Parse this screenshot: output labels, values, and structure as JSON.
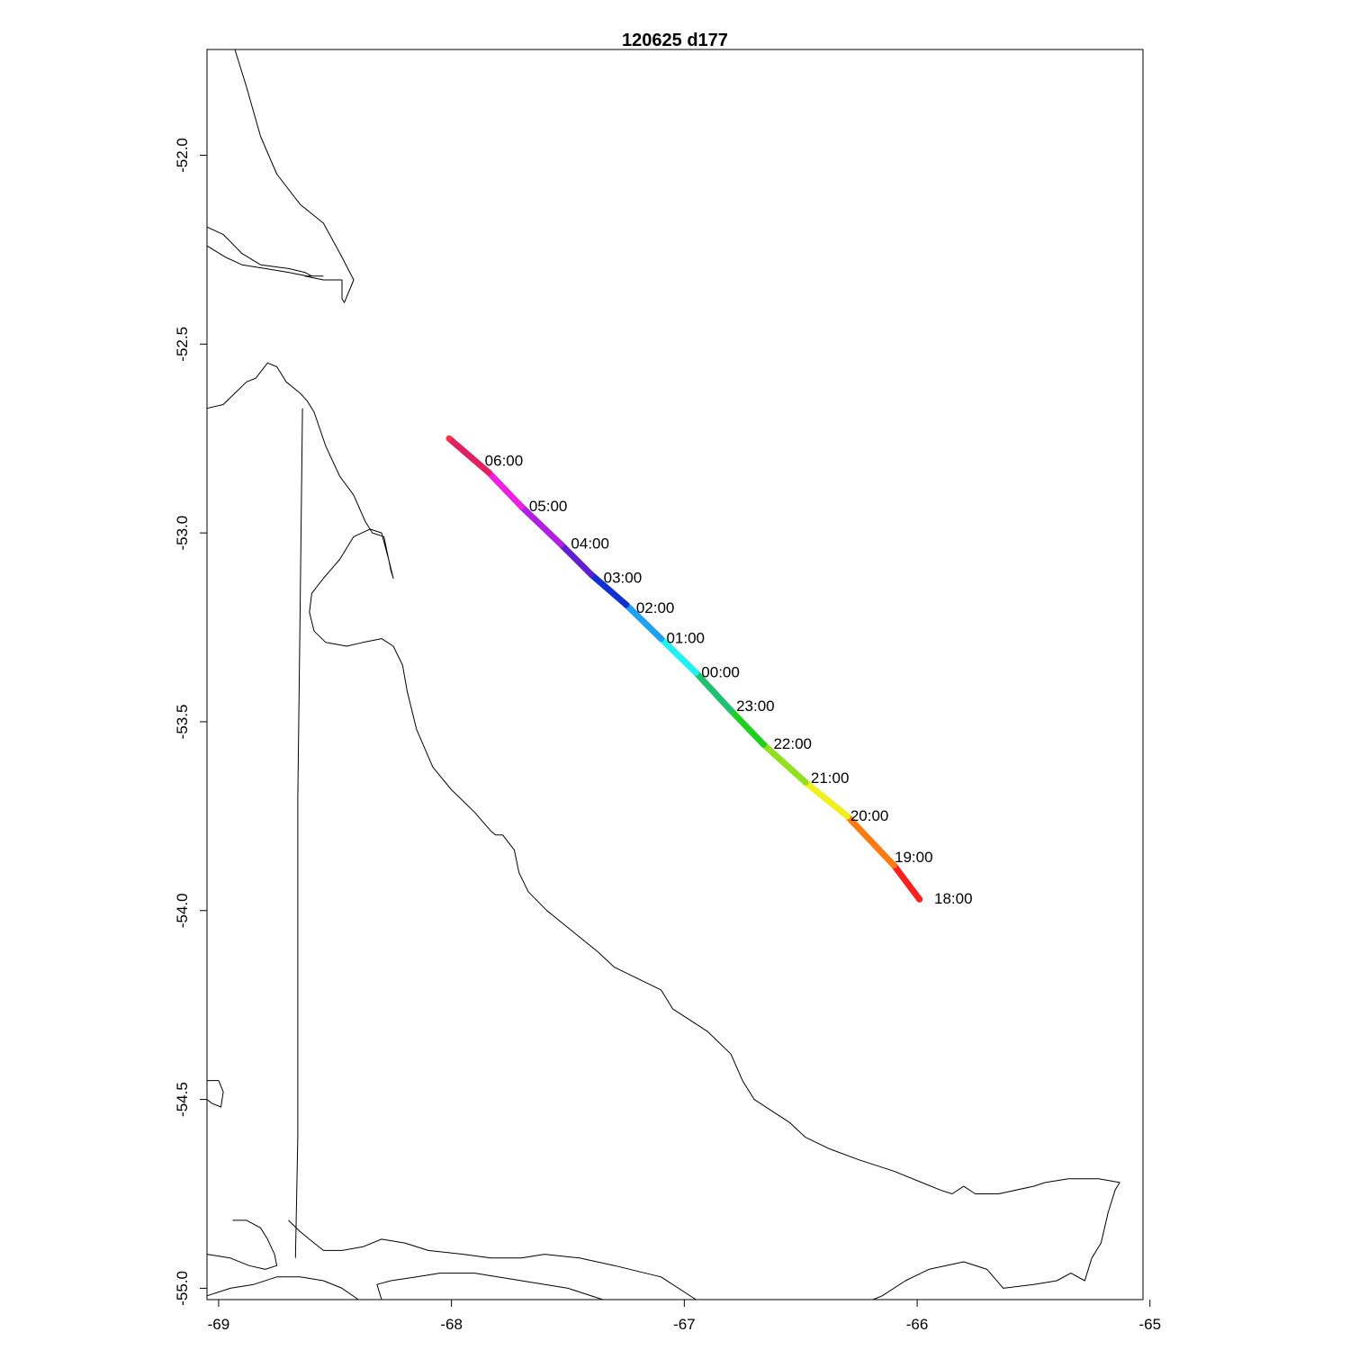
{
  "title": "120625   d177",
  "axes": {
    "x_ticks": [
      "-69",
      "-68",
      "-67",
      "-66",
      "-65"
    ],
    "y_ticks": [
      "-52.0",
      "-52.5",
      "-53.0",
      "-53.5",
      "-54.0",
      "-54.5",
      "-55.0"
    ],
    "xlim": [
      -69.05,
      -65.03
    ],
    "ylim": [
      -55.03,
      -51.72
    ]
  },
  "track": {
    "color_scale": "rainbow by hour (red - yellow - green - cyan - blue - magenta - red)",
    "points": [
      {
        "lon": -65.99,
        "lat": -53.97
      },
      {
        "lon": -66.1,
        "lat": -53.88
      },
      {
        "lon": -66.3,
        "lat": -53.75
      },
      {
        "lon": -66.48,
        "lat": -53.66
      },
      {
        "lon": -66.66,
        "lat": -53.56
      },
      {
        "lon": -66.8,
        "lat": -53.47
      },
      {
        "lon": -66.95,
        "lat": -53.37
      },
      {
        "lon": -67.1,
        "lat": -53.28
      },
      {
        "lon": -67.25,
        "lat": -53.19
      },
      {
        "lon": -67.4,
        "lat": -53.11
      },
      {
        "lon": -67.53,
        "lat": -53.03
      },
      {
        "lon": -67.7,
        "lat": -52.93
      },
      {
        "lon": -67.84,
        "lat": -52.84
      },
      {
        "lon": -68.01,
        "lat": -52.75
      }
    ],
    "colors": [
      "#ff2020",
      "#ff7a10",
      "#f0f020",
      "#90e020",
      "#20d020",
      "#20c070",
      "#20f0f0",
      "#20a0f0",
      "#1030d0",
      "#6020d0",
      "#b020e0",
      "#f020e0",
      "#e02060",
      "#ff3040"
    ],
    "labels": [
      {
        "text": "18:00",
        "lon": -65.95,
        "lat": -53.97
      },
      {
        "text": "19:00",
        "lon": -66.12,
        "lat": -53.86
      },
      {
        "text": "20:00",
        "lon": -66.31,
        "lat": -53.75
      },
      {
        "text": "21:00",
        "lon": -66.48,
        "lat": -53.65
      },
      {
        "text": "22:00",
        "lon": -66.64,
        "lat": -53.56
      },
      {
        "text": "23:00",
        "lon": -66.8,
        "lat": -53.46
      },
      {
        "text": "00:00",
        "lon": -66.95,
        "lat": -53.37
      },
      {
        "text": "01:00",
        "lon": -67.1,
        "lat": -53.28
      },
      {
        "text": "02:00",
        "lon": -67.23,
        "lat": -53.2
      },
      {
        "text": "03:00",
        "lon": -67.37,
        "lat": -53.12
      },
      {
        "text": "04:00",
        "lon": -67.51,
        "lat": -53.03
      },
      {
        "text": "05:00",
        "lon": -67.69,
        "lat": -52.93
      },
      {
        "text": "06:00",
        "lon": -67.88,
        "lat": -52.81
      }
    ]
  },
  "coastlines": [
    [
      [
        -68.93,
        -51.72
      ],
      [
        -68.88,
        -51.82
      ],
      [
        -68.82,
        -51.95
      ],
      [
        -68.75,
        -52.05
      ],
      [
        -68.65,
        -52.13
      ],
      [
        -68.55,
        -52.18
      ],
      [
        -68.47,
        -52.27
      ],
      [
        -68.42,
        -52.33
      ],
      [
        -68.46,
        -52.39
      ],
      [
        -68.47,
        -52.38
      ],
      [
        -68.47,
        -52.33
      ],
      [
        -68.55,
        -52.33
      ],
      [
        -68.63,
        -52.32
      ]
    ],
    [
      [
        -69.05,
        -52.19
      ],
      [
        -68.98,
        -52.21
      ],
      [
        -68.9,
        -52.26
      ],
      [
        -68.82,
        -52.29
      ],
      [
        -68.7,
        -52.3
      ],
      [
        -68.63,
        -52.31
      ],
      [
        -68.6,
        -52.32
      ]
    ],
    [
      [
        -69.05,
        -52.24
      ],
      [
        -68.97,
        -52.27
      ],
      [
        -68.9,
        -52.29
      ],
      [
        -68.8,
        -52.3
      ],
      [
        -68.7,
        -52.31
      ],
      [
        -68.62,
        -52.32
      ],
      [
        -68.55,
        -52.32
      ]
    ],
    [
      [
        -69.05,
        -52.67
      ],
      [
        -68.98,
        -52.66
      ],
      [
        -68.93,
        -52.63
      ],
      [
        -68.88,
        -52.6
      ],
      [
        -68.84,
        -52.59
      ],
      [
        -68.79,
        -52.55
      ],
      [
        -68.75,
        -52.56
      ],
      [
        -68.71,
        -52.6
      ],
      [
        -68.65,
        -52.63
      ],
      [
        -68.62,
        -52.65
      ],
      [
        -68.59,
        -52.68
      ],
      [
        -68.54,
        -52.77
      ],
      [
        -68.48,
        -52.85
      ],
      [
        -68.42,
        -52.9
      ],
      [
        -68.37,
        -52.97
      ],
      [
        -68.34,
        -53.0
      ],
      [
        -68.29,
        -53.01
      ],
      [
        -68.26,
        -53.1
      ],
      [
        -68.25,
        -53.12
      ],
      [
        -68.27,
        -53.07
      ],
      [
        -68.3,
        -53.0
      ],
      [
        -68.35,
        -52.99
      ],
      [
        -68.42,
        -53.01
      ],
      [
        -68.48,
        -53.07
      ],
      [
        -68.55,
        -53.12
      ],
      [
        -68.6,
        -53.16
      ],
      [
        -68.61,
        -53.21
      ],
      [
        -68.59,
        -53.26
      ],
      [
        -68.54,
        -53.29
      ],
      [
        -68.45,
        -53.3
      ],
      [
        -68.38,
        -53.29
      ],
      [
        -68.3,
        -53.28
      ],
      [
        -68.25,
        -53.3
      ],
      [
        -68.21,
        -53.35
      ],
      [
        -68.19,
        -53.42
      ],
      [
        -68.15,
        -53.52
      ],
      [
        -68.08,
        -53.62
      ],
      [
        -68.0,
        -53.68
      ],
      [
        -67.9,
        -53.74
      ],
      [
        -67.83,
        -53.79
      ],
      [
        -67.81,
        -53.8
      ],
      [
        -67.78,
        -53.8
      ],
      [
        -67.73,
        -53.84
      ],
      [
        -67.71,
        -53.9
      ],
      [
        -67.67,
        -53.95
      ],
      [
        -67.59,
        -54.0
      ],
      [
        -67.53,
        -54.03
      ],
      [
        -67.45,
        -54.07
      ],
      [
        -67.37,
        -54.11
      ],
      [
        -67.3,
        -54.15
      ],
      [
        -67.2,
        -54.18
      ],
      [
        -67.1,
        -54.21
      ],
      [
        -67.05,
        -54.26
      ],
      [
        -67.0,
        -54.28
      ],
      [
        -66.9,
        -54.32
      ],
      [
        -66.8,
        -54.38
      ],
      [
        -66.75,
        -54.45
      ],
      [
        -66.7,
        -54.5
      ],
      [
        -66.6,
        -54.54
      ],
      [
        -66.55,
        -54.56
      ],
      [
        -66.48,
        -54.6
      ],
      [
        -66.38,
        -54.63
      ],
      [
        -66.25,
        -54.66
      ],
      [
        -66.1,
        -54.69
      ],
      [
        -65.98,
        -54.72
      ],
      [
        -65.9,
        -54.74
      ],
      [
        -65.85,
        -54.75
      ],
      [
        -65.8,
        -54.73
      ],
      [
        -65.75,
        -54.75
      ],
      [
        -65.65,
        -54.75
      ],
      [
        -65.5,
        -54.73
      ],
      [
        -65.45,
        -54.72
      ],
      [
        -65.35,
        -54.71
      ],
      [
        -65.3,
        -54.71
      ],
      [
        -65.22,
        -54.71
      ],
      [
        -65.13,
        -54.72
      ],
      [
        -65.15,
        -54.74
      ],
      [
        -65.18,
        -54.8
      ],
      [
        -65.21,
        -54.88
      ],
      [
        -65.25,
        -54.92
      ],
      [
        -65.28,
        -54.98
      ],
      [
        -65.34,
        -54.96
      ],
      [
        -65.4,
        -54.98
      ],
      [
        -65.5,
        -54.99
      ],
      [
        -65.63,
        -55.0
      ],
      [
        -65.7,
        -54.95
      ],
      [
        -65.8,
        -54.93
      ],
      [
        -65.95,
        -54.95
      ],
      [
        -66.05,
        -54.98
      ],
      [
        -66.15,
        -55.02
      ],
      [
        -66.19,
        -55.03
      ]
    ],
    [
      [
        -68.64,
        -52.67
      ],
      [
        -68.65,
        -53.2
      ],
      [
        -68.66,
        -53.7
      ],
      [
        -68.66,
        -54.2
      ],
      [
        -68.66,
        -54.6
      ],
      [
        -68.67,
        -54.92
      ]
    ],
    [
      [
        -69.05,
        -54.45
      ],
      [
        -69.0,
        -54.45
      ],
      [
        -68.98,
        -54.48
      ],
      [
        -68.99,
        -54.52
      ],
      [
        -69.03,
        -54.51
      ],
      [
        -69.05,
        -54.5
      ]
    ],
    [
      [
        -68.94,
        -54.82
      ],
      [
        -68.88,
        -54.82
      ],
      [
        -68.82,
        -54.84
      ],
      [
        -68.79,
        -54.87
      ],
      [
        -68.76,
        -54.91
      ],
      [
        -68.75,
        -54.94
      ],
      [
        -68.8,
        -54.95
      ],
      [
        -68.87,
        -54.94
      ],
      [
        -68.95,
        -54.92
      ],
      [
        -69.05,
        -54.91
      ]
    ],
    [
      [
        -68.7,
        -54.82
      ],
      [
        -68.65,
        -54.85
      ],
      [
        -68.59,
        -54.88
      ],
      [
        -68.55,
        -54.9
      ],
      [
        -68.47,
        -54.9
      ],
      [
        -68.38,
        -54.89
      ],
      [
        -68.3,
        -54.87
      ],
      [
        -68.2,
        -54.88
      ],
      [
        -68.1,
        -54.9
      ],
      [
        -67.95,
        -54.91
      ],
      [
        -67.83,
        -54.92
      ],
      [
        -67.7,
        -54.92
      ],
      [
        -67.6,
        -54.91
      ],
      [
        -67.45,
        -54.92
      ],
      [
        -67.3,
        -54.94
      ],
      [
        -67.1,
        -54.97
      ],
      [
        -66.95,
        -55.03
      ]
    ],
    [
      [
        -68.3,
        -55.03
      ],
      [
        -68.32,
        -54.99
      ],
      [
        -68.26,
        -54.98
      ],
      [
        -68.15,
        -54.97
      ],
      [
        -68.05,
        -54.96
      ],
      [
        -67.9,
        -54.96
      ],
      [
        -67.7,
        -54.98
      ],
      [
        -67.5,
        -55.0
      ],
      [
        -67.35,
        -55.03
      ]
    ],
    [
      [
        -69.05,
        -55.02
      ],
      [
        -68.95,
        -55.0
      ],
      [
        -68.85,
        -54.99
      ],
      [
        -68.75,
        -54.97
      ],
      [
        -68.65,
        -54.97
      ],
      [
        -68.55,
        -54.98
      ],
      [
        -68.47,
        -55.0
      ],
      [
        -68.4,
        -55.03
      ]
    ]
  ]
}
